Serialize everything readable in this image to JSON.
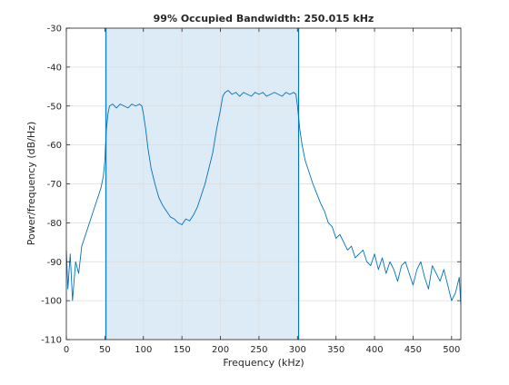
{
  "chart_data": {
    "type": "line",
    "title": "99% Occupied Bandwidth: 250.015 kHz",
    "xlabel": "Frequency (kHz)",
    "ylabel": "Power/frequency (dB/Hz)",
    "xlim": [
      0,
      512
    ],
    "ylim": [
      -110,
      -30
    ],
    "x_ticks": [
      0,
      50,
      100,
      150,
      200,
      250,
      300,
      350,
      400,
      450,
      500
    ],
    "y_ticks": [
      -110,
      -100,
      -90,
      -80,
      -70,
      -60,
      -50,
      -40,
      -30
    ],
    "grid": true,
    "occupied_band": {
      "start": 51.5,
      "end": 301.5
    },
    "series": [
      {
        "color": "#0072bd",
        "x": [
          0,
          2,
          5,
          8,
          12,
          16,
          20,
          25,
          30,
          35,
          40,
          45,
          48,
          50,
          52,
          54,
          56,
          60,
          65,
          70,
          75,
          80,
          85,
          90,
          95,
          98,
          100,
          103,
          106,
          110,
          115,
          120,
          125,
          130,
          135,
          140,
          145,
          150,
          155,
          160,
          165,
          170,
          175,
          180,
          185,
          190,
          195,
          200,
          203,
          206,
          210,
          215,
          220,
          225,
          230,
          235,
          240,
          245,
          250,
          255,
          260,
          265,
          270,
          275,
          280,
          285,
          290,
          295,
          298,
          300,
          303,
          306,
          310,
          315,
          320,
          325,
          330,
          335,
          340,
          345,
          350,
          355,
          360,
          365,
          370,
          375,
          380,
          385,
          390,
          395,
          400,
          405,
          410,
          415,
          420,
          425,
          430,
          435,
          440,
          445,
          450,
          455,
          460,
          465,
          470,
          475,
          480,
          485,
          490,
          495,
          500,
          505,
          510,
          512
        ],
        "y": [
          -87,
          -97,
          -88,
          -100,
          -90,
          -93,
          -86,
          -83,
          -80,
          -77,
          -74,
          -71,
          -68,
          -64,
          -56,
          -52,
          -50,
          -49.5,
          -50.5,
          -49.5,
          -50,
          -50.5,
          -49.5,
          -50,
          -49.5,
          -50,
          -52,
          -56,
          -61,
          -66,
          -70,
          -73.5,
          -75.5,
          -77,
          -78.5,
          -79,
          -80,
          -80.5,
          -79,
          -79.5,
          -78,
          -76,
          -73,
          -70,
          -66,
          -62,
          -56,
          -51,
          -47.5,
          -46.5,
          -46,
          -47,
          -46.5,
          -47.5,
          -46.5,
          -47,
          -47.5,
          -46.5,
          -47,
          -46.5,
          -47.5,
          -47,
          -46.5,
          -47,
          -47.5,
          -46.5,
          -47,
          -46.5,
          -47,
          -50,
          -56,
          -60,
          -64,
          -67,
          -70,
          -72.5,
          -75,
          -77,
          -80,
          -81,
          -84,
          -83,
          -85,
          -87,
          -86,
          -89,
          -88,
          -87,
          -90,
          -91,
          -88,
          -92,
          -89,
          -93,
          -90,
          -92,
          -95,
          -91,
          -90,
          -93,
          -96,
          -92,
          -90,
          -94,
          -97,
          -91,
          -93,
          -95,
          -92,
          -96,
          -100,
          -98,
          -94,
          -101
        ]
      }
    ]
  }
}
